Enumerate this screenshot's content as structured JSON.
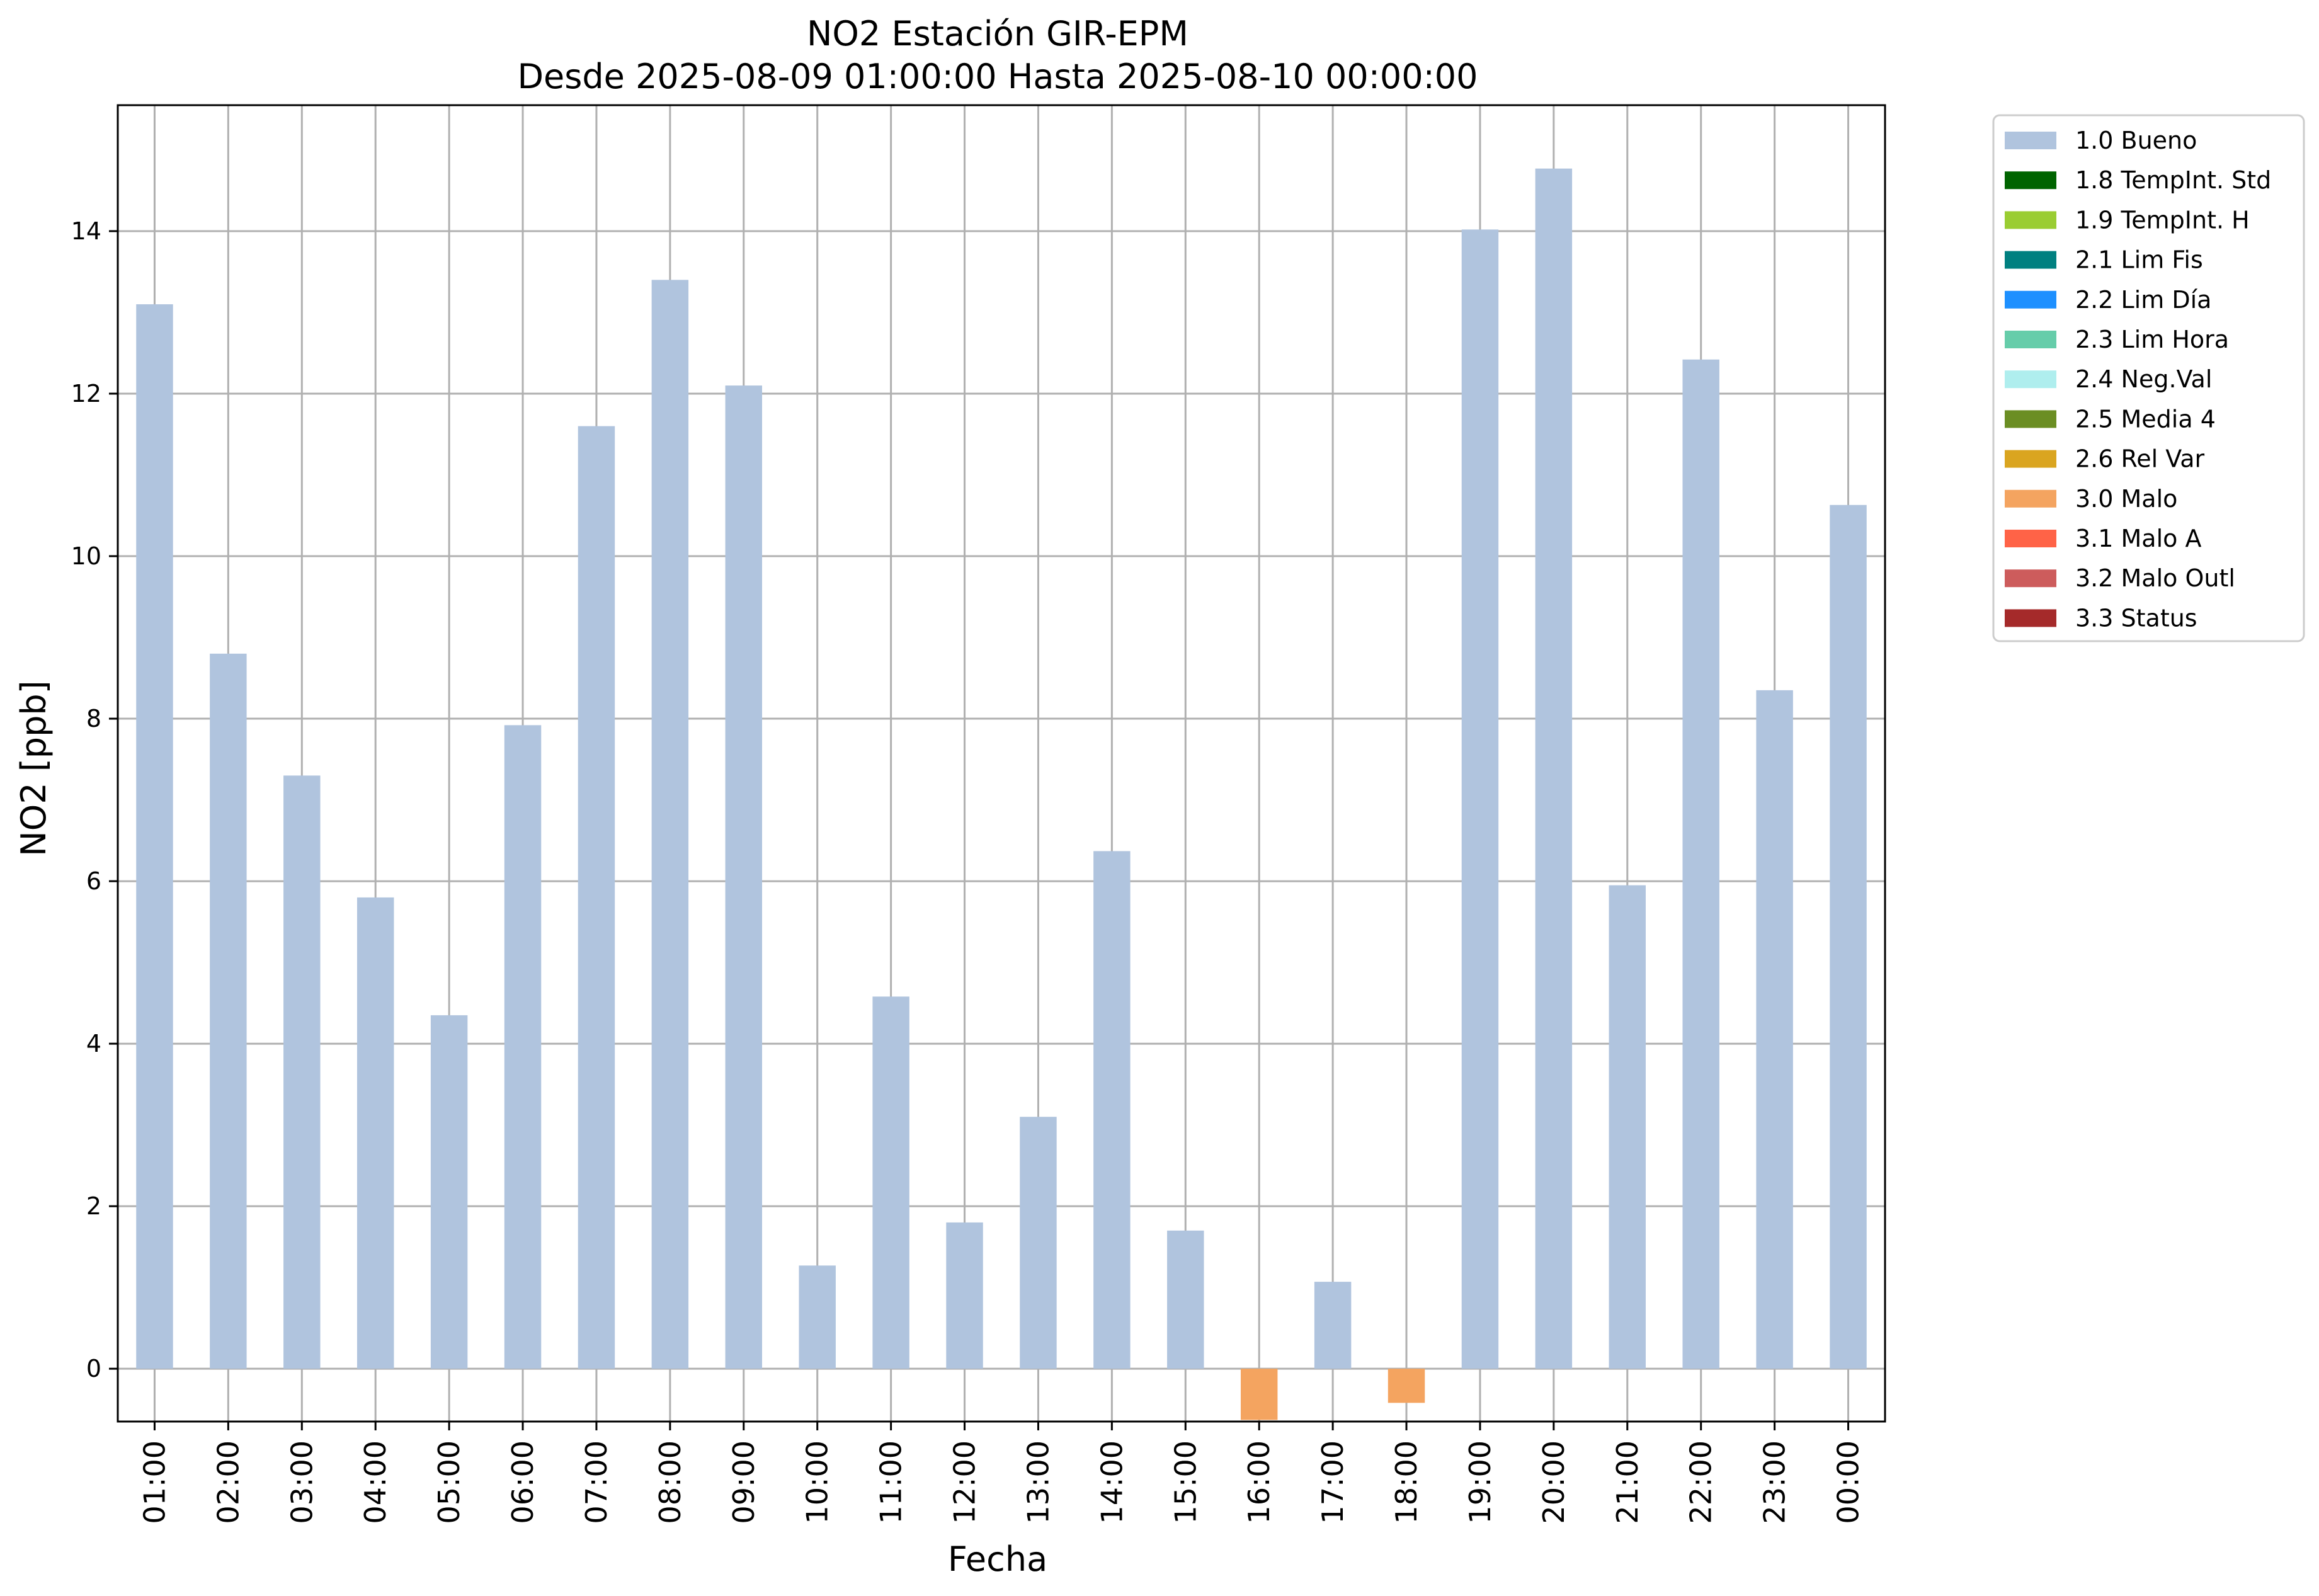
{
  "chart_data": {
    "type": "bar",
    "title": "NO2 Estación GIR-EPM",
    "subtitle": "Desde 2025-08-09 01:00:00 Hasta 2025-08-10 00:00:00",
    "xlabel": "Fecha",
    "ylabel": "NO2 [ppb]",
    "ylim": [
      -0.65,
      15.55
    ],
    "yticks": [
      0,
      2,
      4,
      6,
      8,
      10,
      12,
      14
    ],
    "grid": true,
    "legend_position": "outside-top-right",
    "categories": [
      "01:00",
      "02:00",
      "03:00",
      "04:00",
      "05:00",
      "06:00",
      "07:00",
      "08:00",
      "09:00",
      "10:00",
      "11:00",
      "12:00",
      "13:00",
      "14:00",
      "15:00",
      "16:00",
      "17:00",
      "18:00",
      "19:00",
      "20:00",
      "21:00",
      "22:00",
      "23:00",
      "00:00"
    ],
    "values": [
      13.1,
      8.8,
      7.3,
      5.8,
      4.35,
      7.92,
      11.6,
      13.4,
      12.1,
      1.27,
      4.58,
      1.8,
      3.1,
      6.37,
      1.7,
      -0.63,
      1.07,
      -0.42,
      14.02,
      14.77,
      5.95,
      12.42,
      8.35,
      10.63
    ],
    "flags": [
      "1.0 Bueno",
      "1.0 Bueno",
      "1.0 Bueno",
      "1.0 Bueno",
      "1.0 Bueno",
      "1.0 Bueno",
      "1.0 Bueno",
      "1.0 Bueno",
      "1.0 Bueno",
      "1.0 Bueno",
      "1.0 Bueno",
      "1.0 Bueno",
      "1.0 Bueno",
      "1.0 Bueno",
      "1.0 Bueno",
      "3.0 Malo",
      "1.0 Bueno",
      "3.0 Malo",
      "1.0 Bueno",
      "1.0 Bueno",
      "1.0 Bueno",
      "1.0 Bueno",
      "1.0 Bueno",
      "1.0 Bueno"
    ],
    "legend": [
      {
        "label": "1.0 Bueno",
        "color": "#b0c4de"
      },
      {
        "label": "1.8 TempInt. Std",
        "color": "#006400"
      },
      {
        "label": "1.9 TempInt. H",
        "color": "#9acd32"
      },
      {
        "label": "2.1 Lim Fis",
        "color": "#008080"
      },
      {
        "label": "2.2 Lim Día",
        "color": "#1e90ff"
      },
      {
        "label": "2.3 Lim Hora",
        "color": "#66cdaa"
      },
      {
        "label": "2.4 Neg.Val",
        "color": "#afeeee"
      },
      {
        "label": "2.5 Media 4",
        "color": "#6b8e23"
      },
      {
        "label": "2.6 Rel Var",
        "color": "#daa520"
      },
      {
        "label": "3.0 Malo",
        "color": "#f4a460"
      },
      {
        "label": "3.1 Malo A",
        "color": "#ff6347"
      },
      {
        "label": "3.2 Malo Outl",
        "color": "#cd5c5c"
      },
      {
        "label": "3.3 Status",
        "color": "#a52a2a"
      }
    ]
  }
}
